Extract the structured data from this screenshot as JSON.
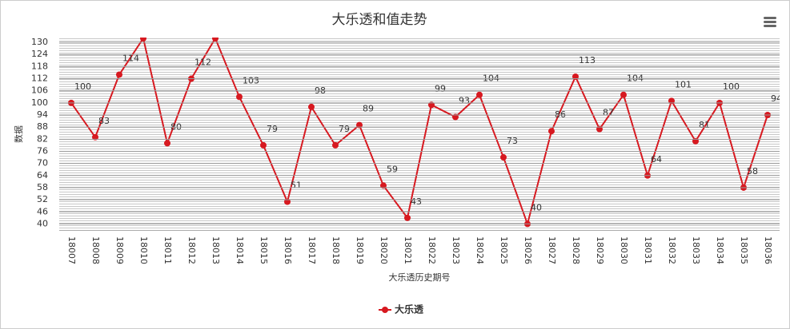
{
  "chart_data": {
    "type": "line",
    "title": "大乐透和值走势",
    "y_axis_label": "数据",
    "x_axis_label": "大乐透历史期号",
    "categories": [
      "18007",
      "18008",
      "18009",
      "18010",
      "18011",
      "18012",
      "18013",
      "18014",
      "18015",
      "18016",
      "18017",
      "18018",
      "18019",
      "18020",
      "18021",
      "18022",
      "18023",
      "18024",
      "18025",
      "18026",
      "18027",
      "18028",
      "18029",
      "18030",
      "18031",
      "18032",
      "18033",
      "18034",
      "18035",
      "18036"
    ],
    "series": [
      {
        "name": "大乐透",
        "color": "#d71920",
        "label_color": "#1a1aa6",
        "values": [
          100,
          83,
          114,
          132,
          80,
          112,
          132,
          103,
          79,
          51,
          98,
          79,
          89,
          59,
          43,
          99,
          93,
          104,
          73,
          40,
          86,
          113,
          87,
          104,
          64,
          101,
          81,
          100,
          58,
          94
        ]
      }
    ],
    "ylim": [
      37,
      132
    ],
    "yticks": [
      40,
      46,
      52,
      58,
      64,
      70,
      76,
      82,
      88,
      94,
      100,
      106,
      112,
      118,
      124,
      130
    ],
    "grid": true,
    "legend": "bottom"
  }
}
